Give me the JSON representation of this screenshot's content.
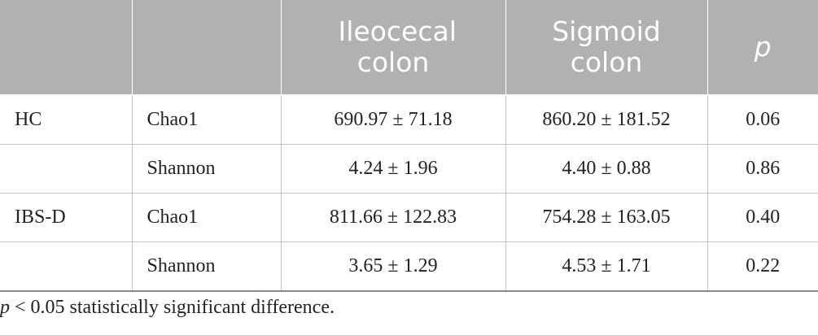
{
  "table": {
    "headers": [
      "",
      "",
      "Ileocecal colon",
      "Sigmoid colon",
      "p"
    ],
    "rows": [
      {
        "group": "HC",
        "metric": "Chao1",
        "ileocecal": "690.97 ± 71.18",
        "sigmoid": "860.20 ± 181.52",
        "p": "0.06"
      },
      {
        "group": "",
        "metric": "Shannon",
        "ileocecal": "4.24 ± 1.96",
        "sigmoid": "4.40 ± 0.88",
        "p": "0.86"
      },
      {
        "group": "IBS-D",
        "metric": "Chao1",
        "ileocecal": "811.66 ± 122.83",
        "sigmoid": "754.28 ± 163.05",
        "p": "0.40"
      },
      {
        "group": "",
        "metric": "Shannon",
        "ileocecal": "3.65 ± 1.29",
        "sigmoid": "4.53 ± 1.71",
        "p": "0.22"
      }
    ]
  },
  "footnote": {
    "p_symbol": "p",
    "text": " < 0.05 statistically significant difference."
  }
}
